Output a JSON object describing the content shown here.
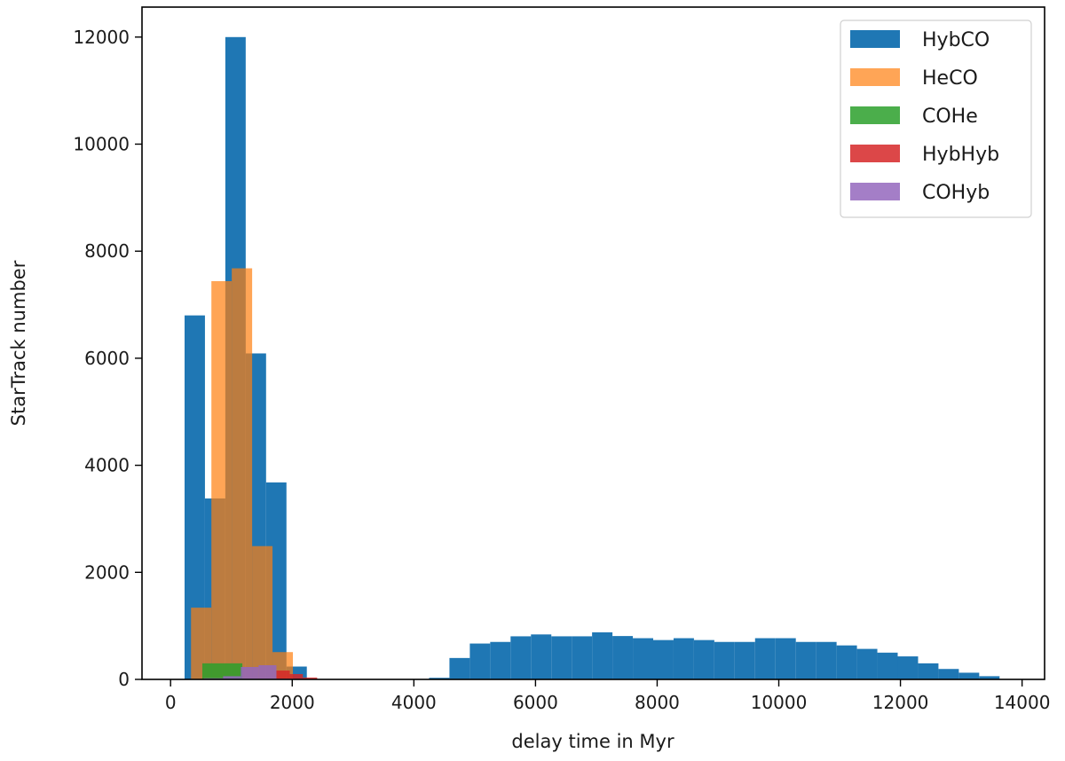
{
  "chart_data": {
    "type": "bar",
    "subtype": "histogram",
    "title": "",
    "xlabel": "delay time in Myr",
    "ylabel": "StarTrack number",
    "xlim": [
      -470,
      14370
    ],
    "ylim": [
      0,
      12560
    ],
    "xticks": [
      "0",
      "2000",
      "4000",
      "6000",
      "8000",
      "10000",
      "12000",
      "14000"
    ],
    "yticks": [
      "0",
      "2000",
      "4000",
      "6000",
      "8000",
      "10000",
      "12000"
    ],
    "grid": false,
    "legend_position": "top-right",
    "series": [
      {
        "name": "HybCO",
        "color": "#1f77b4",
        "bin_edges": [
          230,
          565,
          900,
          1235,
          1570,
          1905,
          2240,
          2575,
          2910,
          3245,
          3580,
          3915,
          4250,
          4585,
          4920,
          5255,
          5590,
          5925,
          6260,
          6595,
          6930,
          7265,
          7600,
          7935,
          8270,
          8605,
          8940,
          9275,
          9610,
          9945,
          10280,
          10615,
          10950,
          11285,
          11620,
          11955,
          12290,
          12625,
          12960,
          13295,
          13630
        ],
        "counts": [
          6800,
          3380,
          12000,
          6090,
          3680,
          240,
          0,
          0,
          0,
          0,
          0,
          0,
          30,
          400,
          670,
          700,
          805,
          840,
          805,
          805,
          880,
          810,
          770,
          735,
          770,
          735,
          700,
          700,
          770,
          770,
          700,
          700,
          635,
          570,
          500,
          430,
          300,
          195,
          125,
          60
        ]
      },
      {
        "name": "HeCO",
        "color": "#ff7f0e",
        "bin_edges": [
          336,
          671,
          1006,
          1341,
          1676,
          2011
        ],
        "counts": [
          1340,
          7440,
          7680,
          2490,
          510
        ]
      },
      {
        "name": "COHe",
        "color": "#2ca02c",
        "bin_edges": [
          522,
          851,
          1180
        ],
        "counts": [
          300,
          300
        ]
      },
      {
        "name": "HybHyb",
        "color": "#d62728",
        "bin_edges": [
          1740,
          1960,
          2175,
          2410
        ],
        "counts": [
          165,
          100,
          35
        ]
      },
      {
        "name": "COHyb",
        "color": "#9467bd",
        "bin_edges": [
          546,
          863,
          1155,
          1447,
          1740,
          2030
        ],
        "counts": [
          22,
          60,
          232,
          265,
          15
        ]
      }
    ]
  }
}
